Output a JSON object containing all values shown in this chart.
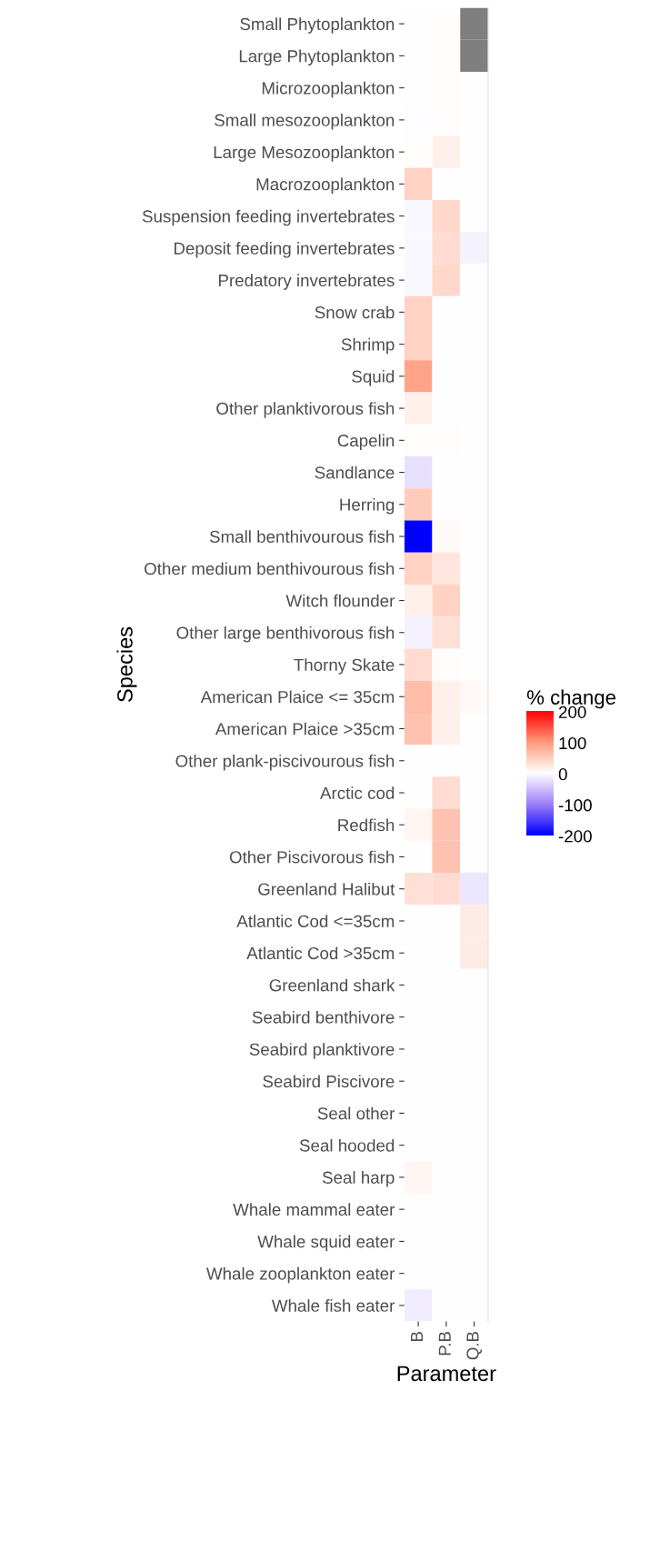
{
  "chart_data": {
    "type": "heatmap",
    "xlabel": "Parameter",
    "ylabel": "Species",
    "clabel": "% change",
    "categories": [
      "B",
      "P.B",
      "Q.B"
    ],
    "y_categories": [
      "Small Phytoplankton",
      "Large Phytoplankton",
      "Microzooplankton",
      "Small mesozooplankton",
      "Large Mesozooplankton",
      "Macrozooplankton",
      "Suspension feeding invertebrates",
      "Deposit feeding invertebrates",
      "Predatory invertebrates",
      "Snow crab",
      "Shrimp",
      "Squid",
      "Other planktivorous fish",
      "Capelin",
      "Sandlance",
      "Herring",
      "Small benthivourous fish",
      "Other medium benthivourous fish",
      "Witch flounder",
      "Other large benthivorous fish",
      "Thorny Skate",
      "American Plaice <= 35cm",
      "American Plaice >35cm",
      "Other plank-piscivourous fish",
      "Arctic cod",
      "Redfish",
      "Other Piscivorous fish",
      "Greenland Halibut",
      "Atlantic Cod <=35cm",
      "Atlantic Cod >35cm",
      "Greenland shark",
      "Seabird benthivore",
      "Seabird planktivore",
      "Seabird Piscivore",
      "Seal other",
      "Seal hooded",
      "Seal harp",
      "Whale mammal eater",
      "Whale squid eater",
      "Whale zooplankton eater",
      "Whale fish eater"
    ],
    "cells": [
      [
        0,
        2,
        null
      ],
      [
        0,
        2,
        null
      ],
      [
        0,
        2,
        0
      ],
      [
        -2,
        3,
        0
      ],
      [
        3,
        15,
        0
      ],
      [
        45,
        0,
        0
      ],
      [
        -5,
        40,
        0
      ],
      [
        -5,
        35,
        -10
      ],
      [
        -5,
        40,
        0
      ],
      [
        45,
        0,
        0
      ],
      [
        45,
        0,
        0
      ],
      [
        90,
        0,
        0
      ],
      [
        15,
        0,
        0
      ],
      [
        3,
        3,
        0
      ],
      [
        -25,
        0,
        0
      ],
      [
        50,
        0,
        0
      ],
      [
        -200,
        5,
        0
      ],
      [
        45,
        25,
        0
      ],
      [
        15,
        45,
        0
      ],
      [
        -10,
        30,
        0
      ],
      [
        35,
        2,
        0
      ],
      [
        65,
        15,
        5
      ],
      [
        60,
        15,
        0
      ],
      [
        0,
        0,
        0
      ],
      [
        0,
        35,
        0
      ],
      [
        10,
        60,
        0
      ],
      [
        0,
        60,
        0
      ],
      [
        30,
        35,
        -20
      ],
      [
        0,
        0,
        20
      ],
      [
        0,
        0,
        20
      ],
      [
        0,
        0,
        0
      ],
      [
        0,
        0,
        0
      ],
      [
        0,
        0,
        0
      ],
      [
        0,
        0,
        0
      ],
      [
        0,
        0,
        0
      ],
      [
        0,
        0,
        0
      ],
      [
        10,
        0,
        0
      ],
      [
        0,
        0,
        0
      ],
      [
        0,
        0,
        0
      ],
      [
        0,
        0,
        0
      ],
      [
        -15,
        0,
        0
      ]
    ],
    "clim": [
      -200,
      200
    ],
    "cticks": [
      -200,
      -100,
      0,
      100,
      200
    ]
  }
}
